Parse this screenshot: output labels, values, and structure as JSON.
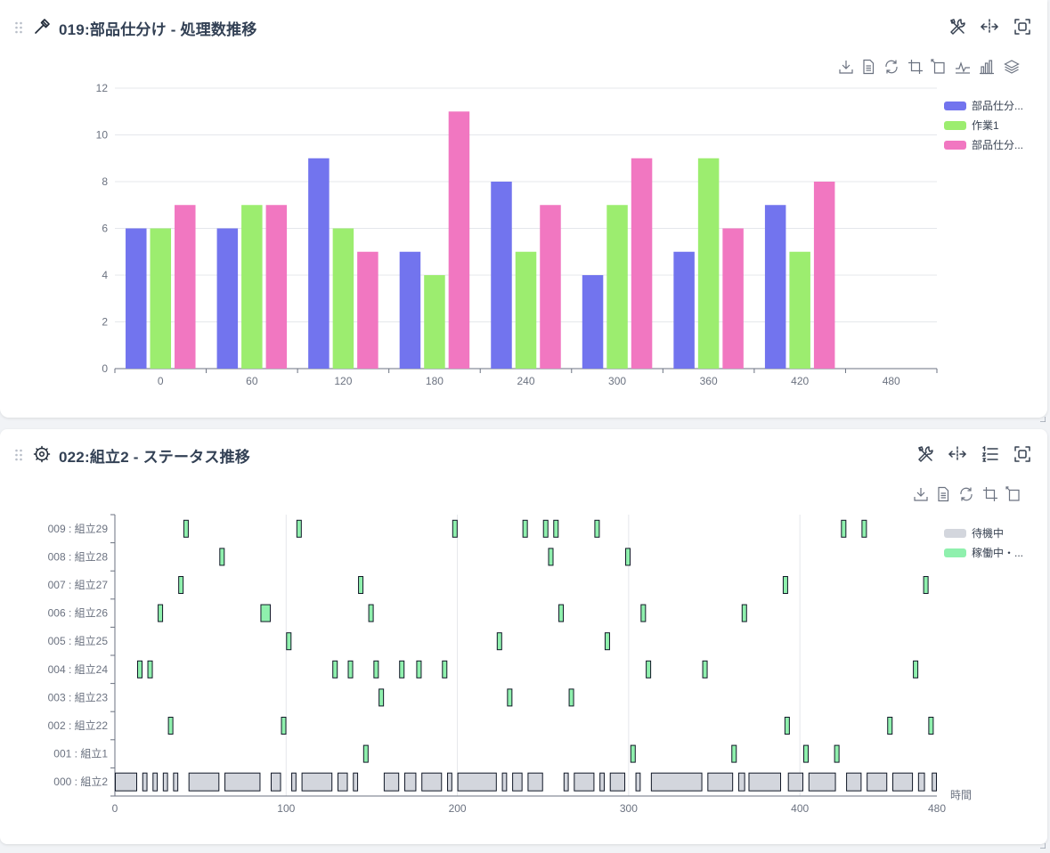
{
  "panel1": {
    "title": "019:部品仕分け - 処理数推移",
    "header_icons": [
      "tools-icon",
      "split-horizontal-icon",
      "fullscreen-icon"
    ],
    "toolbar_icons": [
      "download-icon",
      "data-view-icon",
      "restore-icon",
      "zoom-select-icon",
      "zoom-reset-icon",
      "line-chart-icon",
      "bar-chart-icon",
      "stack-icon"
    ],
    "legend": [
      "部品仕分...",
      "作業1",
      "部品仕分..."
    ],
    "colors": [
      "#7274ee",
      "#9ced6f",
      "#f177c1"
    ]
  },
  "panel2": {
    "title": "022:組立2 - ステータス推移",
    "header_icons": [
      "tools-icon",
      "split-horizontal-icon",
      "list-icon",
      "fullscreen-icon"
    ],
    "toolbar_icons": [
      "download-icon",
      "data-view-icon",
      "restore-icon",
      "zoom-select-icon",
      "zoom-reset-icon"
    ],
    "legend": [
      "待機中",
      "稼働中・..."
    ],
    "colors": [
      "#d3d6dd",
      "#8ff0ad"
    ],
    "x_axis_label": "時間"
  },
  "chart_data": [
    {
      "type": "bar",
      "categories": [
        "0",
        "60",
        "120",
        "180",
        "240",
        "300",
        "360",
        "420",
        "480"
      ],
      "ylim": [
        0,
        12
      ],
      "yticks": [
        0,
        2,
        4,
        6,
        8,
        10,
        12
      ],
      "legend_position": "right-top",
      "grid": true,
      "series": [
        {
          "name": "部品仕分...",
          "values": [
            6,
            6,
            9,
            5,
            8,
            4,
            5,
            7,
            null
          ]
        },
        {
          "name": "作業1",
          "values": [
            6,
            7,
            6,
            4,
            5,
            7,
            9,
            5,
            null
          ]
        },
        {
          "name": "部品仕分...",
          "values": [
            7,
            7,
            5,
            11,
            7,
            9,
            6,
            8,
            null
          ]
        }
      ]
    },
    {
      "type": "gantt",
      "xlim": [
        0,
        480
      ],
      "xticks": [
        0,
        100,
        200,
        300,
        400,
        480
      ],
      "xlabel": "時間",
      "legend_position": "right-top",
      "grid": true,
      "categories": [
        "000 : 組立2",
        "001 : 組立1",
        "002 : 組立22",
        "003 : 組立23",
        "004 : 組立24",
        "005 : 組立25",
        "006 : 組立26",
        "007 : 組立27",
        "008 : 組立28",
        "009 : 組立29"
      ],
      "series": [
        {
          "name": "待機中",
          "row": 0,
          "intervals": [
            [
              0,
              13
            ],
            [
              16,
              19
            ],
            [
              22,
              25
            ],
            [
              28,
              31
            ],
            [
              34,
              37
            ],
            [
              43,
              61
            ],
            [
              64,
              85
            ],
            [
              91,
              97
            ],
            [
              103,
              106
            ],
            [
              109,
              127
            ],
            [
              130,
              136
            ],
            [
              139,
              142
            ],
            [
              157,
              166
            ],
            [
              169,
              176
            ],
            [
              179,
              191
            ],
            [
              194,
              197
            ],
            [
              200,
              223
            ],
            [
              226,
              229
            ],
            [
              232,
              238
            ],
            [
              241,
              250
            ],
            [
              262,
              265
            ],
            [
              268,
              280
            ],
            [
              283,
              286
            ],
            [
              289,
              298
            ],
            [
              304,
              307
            ],
            [
              313,
              343
            ],
            [
              346,
              361
            ],
            [
              364,
              368
            ],
            [
              370,
              389
            ],
            [
              393,
              402
            ],
            [
              405,
              421
            ],
            [
              427,
              436
            ],
            [
              439,
              451
            ],
            [
              454,
              466
            ],
            [
              469,
              473
            ],
            [
              477,
              480
            ]
          ]
        },
        {
          "name": "稼働中・...",
          "intervals": [
            {
              "row": 1,
              "spans": [
                [
                  145,
                  148
                ],
                [
                  301,
                  304
                ],
                [
                  360,
                  363
                ],
                [
                  402,
                  405
                ],
                [
                  420,
                  423
                ]
              ]
            },
            {
              "row": 2,
              "spans": [
                [
                  31,
                  34
                ],
                [
                  97,
                  100
                ],
                [
                  391,
                  394
                ],
                [
                  451,
                  454
                ],
                [
                  475,
                  478
                ]
              ]
            },
            {
              "row": 3,
              "spans": [
                [
                  154,
                  157
                ],
                [
                  229,
                  232
                ],
                [
                  265,
                  268
                ]
              ]
            },
            {
              "row": 4,
              "spans": [
                [
                  13,
                  16
                ],
                [
                  19,
                  22
                ],
                [
                  127,
                  130
                ],
                [
                  136,
                  139
                ],
                [
                  151,
                  154
                ],
                [
                  166,
                  169
                ],
                [
                  176,
                  179
                ],
                [
                  191,
                  194
                ],
                [
                  310,
                  313
                ],
                [
                  343,
                  346
                ],
                [
                  466,
                  469
                ]
              ]
            },
            {
              "row": 5,
              "spans": [
                [
                  100,
                  103
                ],
                [
                  223,
                  226
                ],
                [
                  286,
                  289
                ]
              ]
            },
            {
              "row": 6,
              "spans": [
                [
                  25,
                  28
                ],
                [
                  85,
                  91
                ],
                [
                  148,
                  151
                ],
                [
                  259,
                  262
                ],
                [
                  307,
                  310
                ],
                [
                  366,
                  369
                ]
              ]
            },
            {
              "row": 7,
              "spans": [
                [
                  37,
                  40
                ],
                [
                  142,
                  145
                ],
                [
                  390,
                  393
                ],
                [
                  472,
                  475
                ]
              ]
            },
            {
              "row": 8,
              "spans": [
                [
                  61,
                  64
                ],
                [
                  253,
                  256
                ],
                [
                  298,
                  301
                ]
              ]
            },
            {
              "row": 9,
              "spans": [
                [
                  40,
                  43
                ],
                [
                  106,
                  109
                ],
                [
                  197,
                  200
                ],
                [
                  238,
                  241
                ],
                [
                  250,
                  253
                ],
                [
                  256,
                  259
                ],
                [
                  280,
                  283
                ],
                [
                  424,
                  427
                ],
                [
                  436,
                  439
                ]
              ]
            }
          ]
        }
      ]
    }
  ]
}
